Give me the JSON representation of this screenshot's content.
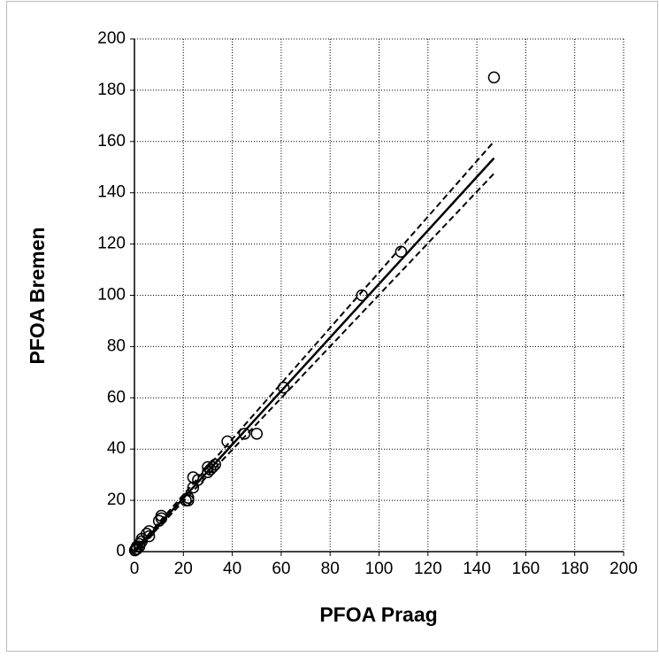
{
  "chart_data": {
    "type": "scatter",
    "x_label": "PFOA Praag",
    "y_label": "PFOA Bremen",
    "xlim": [
      0,
      200
    ],
    "ylim": [
      0,
      200
    ],
    "xticks": [
      0,
      20,
      40,
      60,
      80,
      100,
      120,
      140,
      160,
      180,
      200
    ],
    "yticks": [
      0,
      20,
      40,
      60,
      80,
      100,
      120,
      140,
      160,
      180,
      200
    ],
    "grid": true,
    "series": [
      {
        "color": "#000000",
        "x": [
          147,
          109,
          93,
          61,
          50,
          45,
          38,
          33,
          32,
          30,
          30,
          31,
          24,
          24,
          26,
          22,
          21,
          22,
          11,
          11,
          10,
          6,
          5,
          6,
          3,
          2,
          1,
          0.5,
          0.2,
          1,
          2,
          3
        ],
        "values": [
          185,
          117,
          100,
          64,
          46,
          46,
          43,
          34,
          33,
          33,
          31,
          32,
          29,
          25,
          28,
          21,
          20,
          20,
          14,
          13,
          12,
          8,
          7,
          6,
          4,
          3,
          2,
          1,
          0.5,
          1,
          2,
          5
        ]
      }
    ],
    "lines": [
      {
        "style": "solid",
        "x": [
          0,
          147
        ],
        "values": [
          0,
          153.5
        ]
      },
      {
        "style": "dashed",
        "x": [
          0,
          147
        ],
        "values": [
          0.5,
          160
        ]
      },
      {
        "style": "dashed",
        "x": [
          0,
          147
        ],
        "values": [
          -0.5,
          147.5
        ]
      }
    ]
  }
}
